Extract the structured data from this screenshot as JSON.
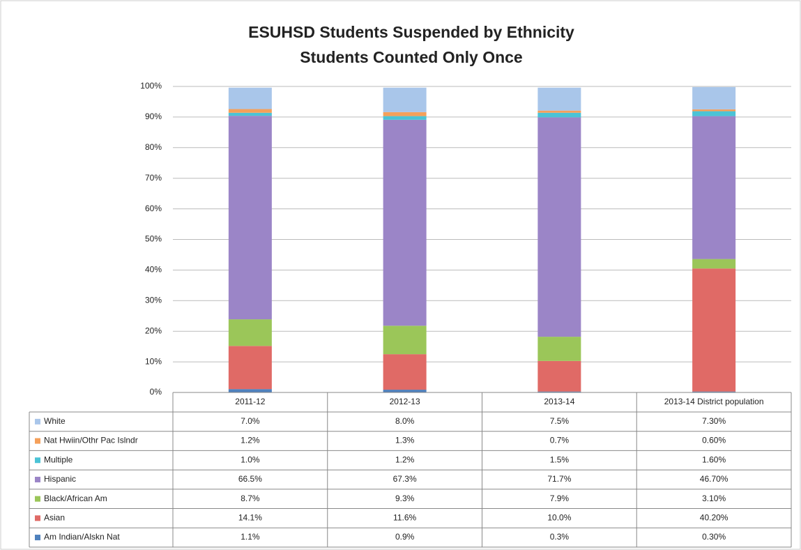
{
  "chart_data": {
    "type": "stacked_bar",
    "title": "ESUHSD Students Suspended by Ethnicity",
    "subtitle": "Students Counted Only Once",
    "categories": [
      "2011-12",
      "2012-13",
      "2013-14",
      "2013-14 District population"
    ],
    "ylim": [
      0,
      100
    ],
    "yticks": [
      {
        "value": 0,
        "label": "0%"
      },
      {
        "value": 10,
        "label": "10%"
      },
      {
        "value": 20,
        "label": "20%"
      },
      {
        "value": 30,
        "label": "30%"
      },
      {
        "value": 40,
        "label": "40%"
      },
      {
        "value": 50,
        "label": "50%"
      },
      {
        "value": 60,
        "label": "60%"
      },
      {
        "value": 70,
        "label": "70%"
      },
      {
        "value": 80,
        "label": "80%"
      },
      {
        "value": 90,
        "label": "90%"
      },
      {
        "value": 100,
        "label": "100%"
      }
    ],
    "grid": true,
    "series": [
      {
        "name": "White",
        "color": "#a9c6ea",
        "values": [
          7.0,
          8.0,
          7.5,
          7.3
        ],
        "value_labels": [
          "7.0%",
          "8.0%",
          "7.5%",
          "7.30%"
        ]
      },
      {
        "name": "Nat Hwiin/Othr Pac Islndr",
        "color": "#f5a05a",
        "values": [
          1.2,
          1.3,
          0.7,
          0.6
        ],
        "value_labels": [
          "1.2%",
          "1.3%",
          "0.7%",
          "0.60%"
        ]
      },
      {
        "name": "Multiple",
        "color": "#4bc3d6",
        "values": [
          1.0,
          1.2,
          1.5,
          1.6
        ],
        "value_labels": [
          "1.0%",
          "1.2%",
          "1.5%",
          "1.60%"
        ]
      },
      {
        "name": "Hispanic",
        "color": "#9b85c7",
        "values": [
          66.5,
          67.3,
          71.7,
          46.7
        ],
        "value_labels": [
          "66.5%",
          "67.3%",
          "71.7%",
          "46.70%"
        ]
      },
      {
        "name": "Black/African Am",
        "color": "#9bc659",
        "values": [
          8.7,
          9.3,
          7.9,
          3.1
        ],
        "value_labels": [
          "8.7%",
          "9.3%",
          "7.9%",
          "3.10%"
        ]
      },
      {
        "name": "Asian",
        "color": "#e06a66",
        "values": [
          14.1,
          11.6,
          10.0,
          40.2
        ],
        "value_labels": [
          "14.1%",
          "11.6%",
          "10.0%",
          "40.20%"
        ]
      },
      {
        "name": "Am Indian/Alskn Nat",
        "color": "#4f81bd",
        "values": [
          1.1,
          0.9,
          0.3,
          0.3
        ],
        "value_labels": [
          "1.1%",
          "0.9%",
          "0.3%",
          "0.30%"
        ]
      }
    ]
  }
}
